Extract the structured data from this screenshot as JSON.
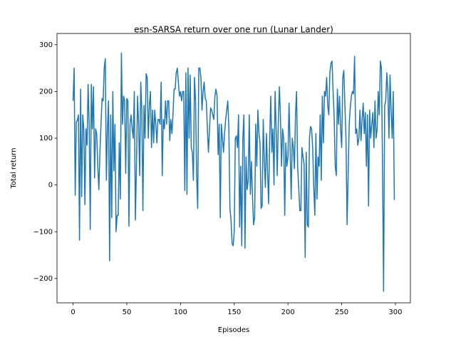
{
  "chart_data": {
    "type": "line",
    "title": "esn-SARSA return over one run (Lunar Lander)",
    "xlabel": "Episodes",
    "ylabel": "Total return",
    "xlim": [
      -14.95,
      313.95
    ],
    "xticks": [
      0,
      50,
      100,
      150,
      200,
      250,
      300
    ],
    "ylim": [
      -252,
      324
    ],
    "yticks": [
      {
        "value": -200,
        "label": "−200"
      },
      {
        "value": -100,
        "label": "−100"
      },
      0,
      100,
      200,
      300
    ],
    "grid": false,
    "series": [
      {
        "color": "#1f77b4",
        "values": [
          180,
          250,
          -22,
          135,
          138,
          150,
          -118,
          205,
          -25,
          150,
          120,
          -42,
          120,
          85,
          215,
          130,
          -95,
          215,
          120,
          210,
          15,
          120,
          110,
          40,
          -10,
          70,
          130,
          185,
          180,
          250,
          270,
          10,
          120,
          180,
          -162,
          150,
          -70,
          200,
          30,
          130,
          -100,
          -65,
          -65,
          90,
          -30,
          282,
          130,
          190,
          180,
          25,
          185,
          180,
          -88,
          130,
          150,
          120,
          100,
          200,
          -75,
          40,
          190,
          130,
          20,
          220,
          160,
          -55,
          170,
          100,
          238,
          230,
          100,
          170,
          200,
          80,
          160,
          90,
          160,
          130,
          90,
          140,
          140,
          130,
          220,
          20,
          140,
          120,
          180,
          130,
          180,
          180,
          95,
          140,
          110,
          150,
          205,
          205,
          240,
          250,
          220,
          190,
          200,
          180,
          200,
          200,
          -12,
          240,
          -20,
          250,
          100,
          235,
          80,
          70,
          10,
          230,
          180,
          20,
          -50,
          250,
          250,
          230,
          160,
          200,
          220,
          185,
          180,
          120,
          70,
          120,
          165,
          160,
          150,
          140,
          190,
          205,
          190,
          65,
          130,
          -70,
          130,
          100,
          70,
          110,
          140,
          160,
          180,
          120,
          -50,
          -75,
          -125,
          -130,
          -100,
          100,
          105,
          80,
          150,
          -90,
          40,
          -130,
          100,
          150,
          -135,
          60,
          -10,
          10,
          150,
          -20,
          50,
          -25,
          -85,
          -70,
          130,
          40,
          160,
          110,
          90,
          -50,
          -45,
          140,
          50,
          -5,
          110,
          30,
          -40,
          100,
          190,
          70,
          120,
          0,
          200,
          120,
          20,
          130,
          210,
          150,
          40,
          120,
          100,
          -65,
          90,
          40,
          60,
          175,
          80,
          -30,
          100,
          80,
          35,
          150,
          200,
          40,
          -5,
          -55,
          -55,
          80,
          60,
          45,
          -155,
          70,
          -85,
          -90,
          100,
          125,
          120,
          80,
          -5,
          -65,
          110,
          -30,
          60,
          40,
          150,
          10,
          190,
          90,
          200,
          190,
          230,
          170,
          150,
          240,
          260,
          265,
          200,
          145,
          40,
          20,
          205,
          130,
          190,
          120,
          80,
          230,
          245,
          170,
          100,
          -85,
          20,
          130,
          165,
          190,
          200,
          195,
          275,
          110,
          120,
          85,
          100,
          160,
          95,
          140,
          175,
          110,
          155,
          40,
          150,
          -45,
          160,
          100,
          130,
          155,
          80,
          180,
          100,
          120,
          200,
          150,
          265,
          250,
          40,
          -227,
          170,
          180,
          240,
          200,
          100,
          235,
          160,
          100,
          200,
          -32
        ]
      }
    ]
  }
}
